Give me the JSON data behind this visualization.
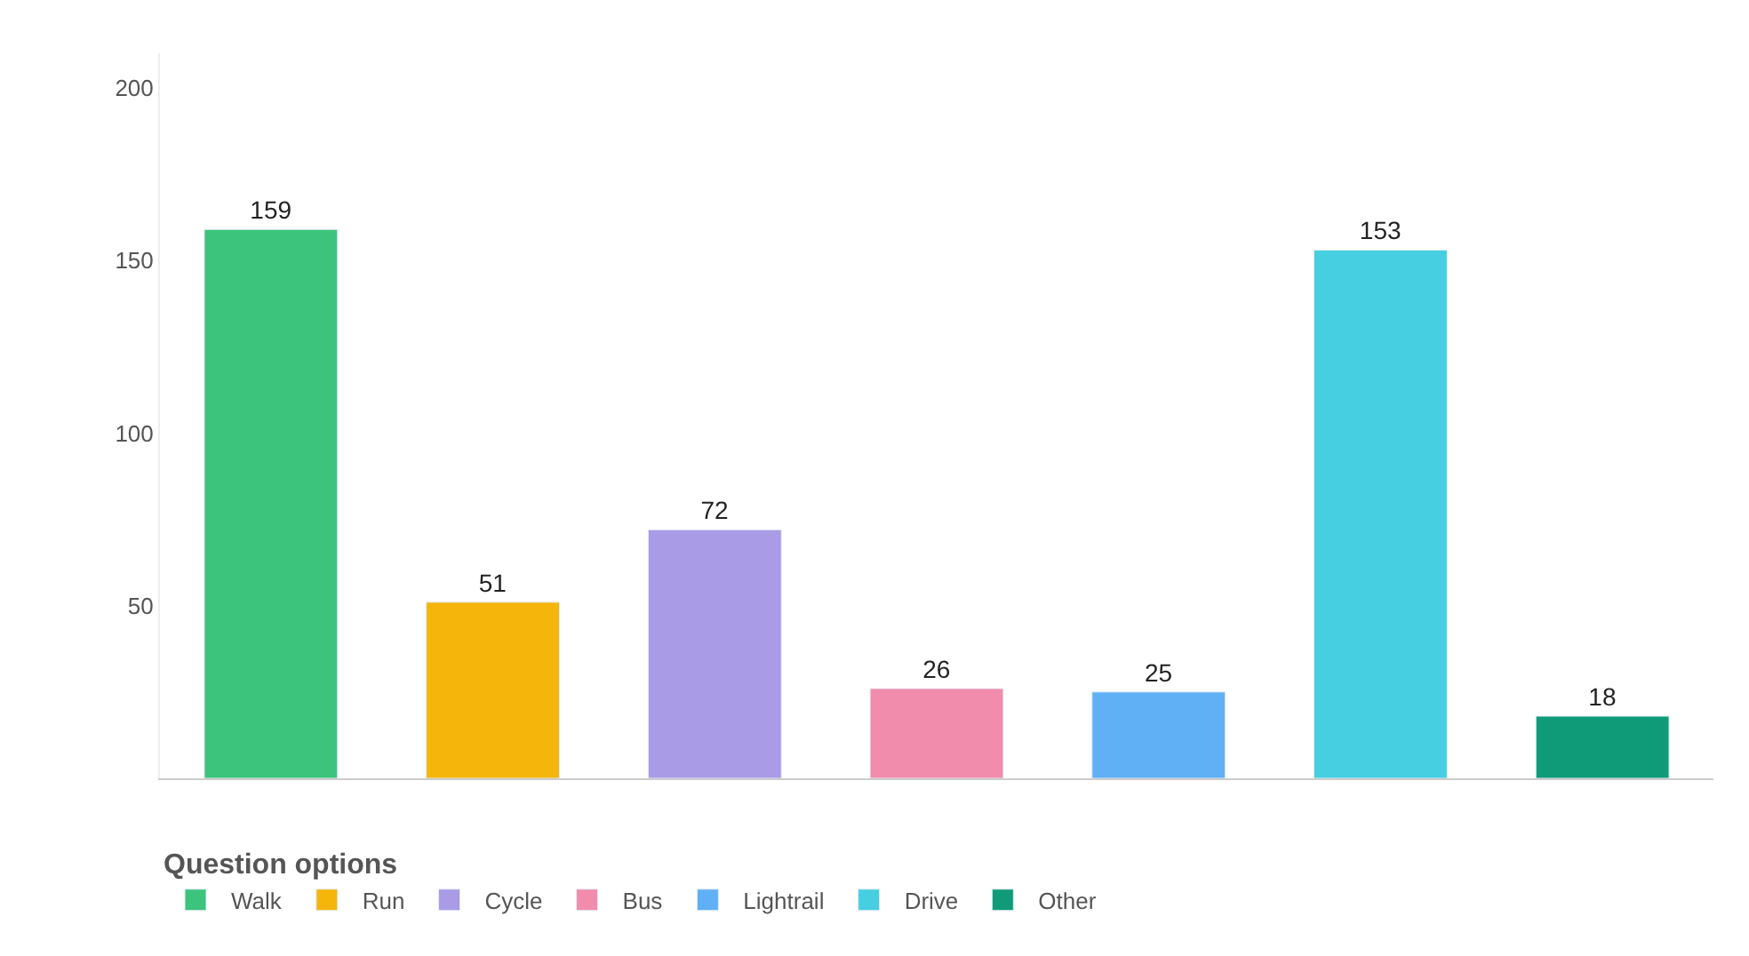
{
  "chart_data": {
    "type": "bar",
    "categories": [
      null,
      null,
      null,
      null,
      null,
      null,
      null
    ],
    "series": [
      {
        "name": "Walk",
        "color": "#3cc47c",
        "values": [
          159,
          null,
          null,
          null,
          null,
          null,
          null
        ]
      },
      {
        "name": "Run",
        "color": "#f5b50a",
        "values": [
          null,
          51,
          null,
          null,
          null,
          null,
          null
        ]
      },
      {
        "name": "Cycle",
        "color": "#a99be6",
        "values": [
          null,
          null,
          72,
          null,
          null,
          null,
          null
        ]
      },
      {
        "name": "Bus",
        "color": "#f28cad",
        "values": [
          null,
          null,
          null,
          26,
          null,
          null,
          null
        ]
      },
      {
        "name": "Lightrail",
        "color": "#5fb0f5",
        "values": [
          null,
          null,
          null,
          null,
          25,
          null,
          null
        ]
      },
      {
        "name": "Drive",
        "color": "#45cfe0",
        "values": [
          null,
          null,
          null,
          null,
          null,
          153,
          null
        ]
      },
      {
        "name": "Other",
        "color": "#0f9b78",
        "values": [
          null,
          null,
          null,
          null,
          null,
          null,
          18
        ]
      }
    ],
    "ylim": [
      0,
      210
    ],
    "yticks": [
      50,
      100,
      150,
      200
    ],
    "data_labels": true,
    "grid": false,
    "tick_labels": "y",
    "legend": "bottom left",
    "legend_title": "Question options"
  }
}
